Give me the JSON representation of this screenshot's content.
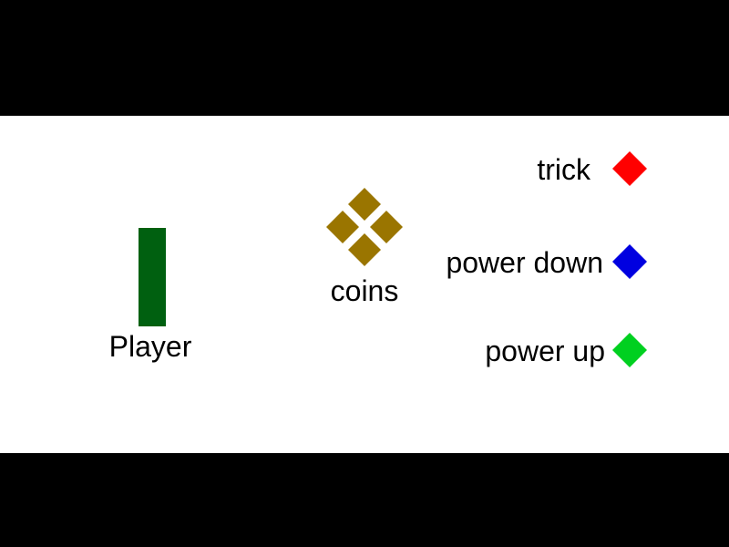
{
  "scene": {
    "background_color": "#ffffff",
    "letterbox_color": "#000000"
  },
  "player": {
    "label": "Player",
    "color": "#006010"
  },
  "coins": {
    "label": "coins",
    "color": "#9a7500",
    "icon": "coin-cluster-icon"
  },
  "legend": {
    "items": [
      {
        "key": "trick",
        "label": "trick",
        "color": "#ff0000",
        "icon": "red-diamond-icon"
      },
      {
        "key": "power_down",
        "label": "power down",
        "color": "#0000e0",
        "icon": "blue-diamond-icon"
      },
      {
        "key": "power_up",
        "label": "power up",
        "color": "#00d020",
        "icon": "green-diamond-icon"
      }
    ]
  }
}
